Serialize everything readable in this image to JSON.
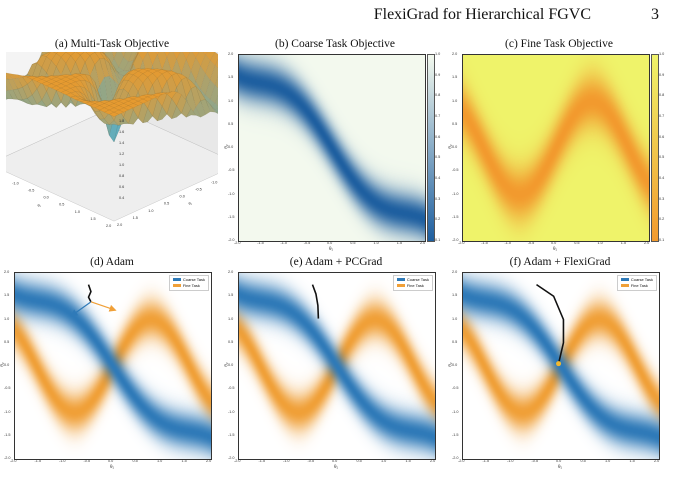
{
  "header": {
    "title": "FlexiGrad for Hierarchical FGVC",
    "page_number": "3"
  },
  "colors": {
    "coarse": "#2f7ab8",
    "fine": "#f0a038",
    "coarse_map_low": "#1e5fa0",
    "coarse_map_high": "#f3f9ee",
    "fine_map_low": "#f29a2e",
    "fine_map_high": "#eff36a"
  },
  "axis_labels": {
    "x": "θ₁",
    "y": "θ₂"
  },
  "legend": {
    "coarse": "Coarse Task",
    "fine": "Fine Task"
  },
  "chart_data": [
    {
      "type": "surface",
      "title": "(a) Multi-Task Objective",
      "xlabel": "θ₁",
      "ylabel": "θ₂",
      "xticks": [
        "-2.0",
        "-1.5",
        "-1.0",
        "-0.5",
        "0.0",
        "0.5",
        "1.0",
        "1.5",
        "2.0"
      ],
      "yticks": [
        "-2.0",
        "-1.5",
        "-1.0",
        "-0.5",
        "0.0",
        "0.5",
        "1.0",
        "1.5",
        "2.0"
      ],
      "zticks": [
        "0.4",
        "0.6",
        "0.8",
        "1.0",
        "1.2",
        "1.4",
        "1.6",
        "1.8"
      ]
    },
    {
      "type": "heatmap",
      "title": "(b) Coarse Task Objective",
      "xlabel": "θ₁",
      "ylabel": "θ₂",
      "xlim": [
        -2,
        2
      ],
      "ylim": [
        -2,
        2
      ],
      "xticks": [
        "-2.0",
        "-1.5",
        "-1.0",
        "-0.5",
        "0.0",
        "0.5",
        "1.0",
        "1.5",
        "2.0"
      ],
      "yticks": [
        "2.0",
        "1.5",
        "1.0",
        "0.5",
        "0.0",
        "-0.5",
        "-1.0",
        "-1.5",
        "-2.0"
      ],
      "colorbar": [
        "1.0",
        "0.9",
        "0.8",
        "0.7",
        "0.6",
        "0.5",
        "0.4",
        "0.3",
        "0.2",
        "0.1"
      ]
    },
    {
      "type": "heatmap",
      "title": "(c) Fine Task Objective",
      "xlabel": "θ₁",
      "ylabel": "θ₂",
      "xlim": [
        -2,
        2
      ],
      "ylim": [
        -2,
        2
      ],
      "xticks": [
        "-2.0",
        "-1.5",
        "-1.0",
        "-0.5",
        "0.0",
        "0.5",
        "1.0",
        "1.5",
        "2.0"
      ],
      "yticks": [
        "2.0",
        "1.5",
        "1.0",
        "0.5",
        "0.0",
        "-0.5",
        "-1.0",
        "-1.5",
        "-2.0"
      ],
      "colorbar": [
        "1.0",
        "0.9",
        "0.8",
        "0.7",
        "0.6",
        "0.5",
        "0.4",
        "0.3",
        "0.2",
        "0.1"
      ]
    },
    {
      "type": "heatmap",
      "title": "(d) Adam",
      "xlabel": "θ₁",
      "ylabel": "θ₂",
      "xlim": [
        -2,
        2
      ],
      "ylim": [
        -2,
        2
      ],
      "xticks": [
        "-2.0",
        "-1.5",
        "-1.0",
        "-0.5",
        "0.0",
        "0.5",
        "1.0",
        "1.5",
        "2.0"
      ],
      "yticks": [
        "2.0",
        "1.5",
        "1.0",
        "0.5",
        "0.0",
        "-0.5",
        "-1.0",
        "-1.5",
        "-2.0"
      ],
      "trajectory": [
        [
          -0.5,
          1.75
        ],
        [
          -0.45,
          1.6
        ],
        [
          -0.5,
          1.48
        ],
        [
          -0.45,
          1.38
        ]
      ],
      "arrows": [
        {
          "color": "coarse",
          "from": [
            -0.45,
            1.38
          ],
          "to": [
            -0.85,
            1.08
          ]
        },
        {
          "color": "fine",
          "from": [
            -0.45,
            1.38
          ],
          "to": [
            0.05,
            1.2
          ]
        }
      ]
    },
    {
      "type": "heatmap",
      "title": "(e) Adam + PCGrad",
      "xlabel": "θ₁",
      "ylabel": "θ₂",
      "xlim": [
        -2,
        2
      ],
      "ylim": [
        -2,
        2
      ],
      "xticks": [
        "-2.0",
        "-1.5",
        "-1.0",
        "-0.5",
        "0.0",
        "0.5",
        "1.0",
        "1.5",
        "2.0"
      ],
      "yticks": [
        "2.0",
        "1.5",
        "1.0",
        "0.5",
        "0.0",
        "-0.5",
        "-1.0",
        "-1.5",
        "-2.0"
      ],
      "trajectory": [
        [
          -0.5,
          1.75
        ],
        [
          -0.43,
          1.55
        ],
        [
          -0.39,
          1.3
        ],
        [
          -0.38,
          1.02
        ]
      ]
    },
    {
      "type": "heatmap",
      "title": "(f) Adam + FlexiGrad",
      "xlabel": "θ₁",
      "ylabel": "θ₂",
      "xlim": [
        -2,
        2
      ],
      "ylim": [
        -2,
        2
      ],
      "xticks": [
        "-2.0",
        "-1.5",
        "-1.0",
        "-0.5",
        "0.0",
        "0.5",
        "1.0",
        "1.5",
        "2.0"
      ],
      "yticks": [
        "2.0",
        "1.5",
        "1.0",
        "0.5",
        "0.0",
        "-0.5",
        "-1.0",
        "-1.5",
        "-2.0"
      ],
      "trajectory": [
        [
          -0.5,
          1.75
        ],
        [
          -0.15,
          1.5
        ],
        [
          0.05,
          1.0
        ],
        [
          0.05,
          0.5
        ],
        [
          -0.05,
          0.05
        ]
      ],
      "end_point": [
        -0.05,
        0.05
      ]
    }
  ]
}
